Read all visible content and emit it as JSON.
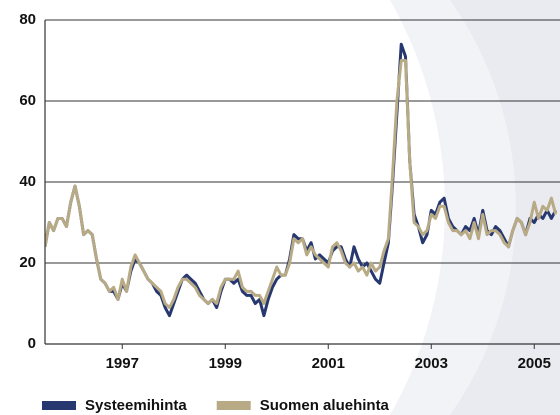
{
  "chart_data": {
    "type": "line",
    "x": [
      1996,
      1996.083,
      1996.167,
      1996.25,
      1996.333,
      1996.417,
      1996.5,
      1996.583,
      1996.667,
      1996.75,
      1996.833,
      1996.917,
      1997,
      1997.083,
      1997.167,
      1997.25,
      1997.333,
      1997.417,
      1997.5,
      1997.583,
      1997.667,
      1997.75,
      1997.833,
      1997.917,
      1998,
      1998.083,
      1998.167,
      1998.25,
      1998.333,
      1998.417,
      1998.5,
      1998.583,
      1998.667,
      1998.75,
      1998.833,
      1998.917,
      1999,
      1999.083,
      1999.167,
      1999.25,
      1999.333,
      1999.417,
      1999.5,
      1999.583,
      1999.667,
      1999.75,
      1999.833,
      1999.917,
      2000,
      2000.083,
      2000.167,
      2000.25,
      2000.333,
      2000.417,
      2000.5,
      2000.583,
      2000.667,
      2000.75,
      2000.833,
      2000.917,
      2001,
      2001.083,
      2001.167,
      2001.25,
      2001.333,
      2001.417,
      2001.5,
      2001.583,
      2001.667,
      2001.75,
      2001.833,
      2001.917,
      2002,
      2002.083,
      2002.167,
      2002.25,
      2002.333,
      2002.417,
      2002.5,
      2002.583,
      2002.667,
      2002.75,
      2002.833,
      2002.917,
      2003,
      2003.083,
      2003.167,
      2003.25,
      2003.333,
      2003.417,
      2003.5,
      2003.583,
      2003.667,
      2003.75,
      2003.833,
      2003.917,
      2004,
      2004.083,
      2004.167,
      2004.25,
      2004.333,
      2004.417,
      2004.5,
      2004.583,
      2004.667,
      2004.75,
      2004.833,
      2004.917,
      2005,
      2005.083,
      2005.167,
      2005.25,
      2005.333,
      2005.417,
      2005.5,
      2005.583,
      2005.667,
      2005.75,
      2005.833,
      2005.917
    ],
    "series": [
      {
        "name": "Systeemihinta",
        "color": "#26386f",
        "values": [
          24,
          30,
          28,
          31,
          31,
          29,
          35,
          39,
          34,
          27,
          28,
          27,
          21,
          16,
          15,
          13,
          13,
          11,
          15,
          13,
          18,
          21,
          20,
          18,
          16,
          15,
          13,
          12,
          9,
          7,
          10,
          13,
          16,
          17,
          16,
          15,
          13,
          11,
          10,
          11,
          9,
          13,
          16,
          16,
          15,
          16,
          13,
          12,
          12,
          10,
          11,
          7,
          11,
          14,
          16,
          17,
          17,
          21,
          27,
          26,
          26,
          23,
          25,
          21,
          22,
          21,
          20,
          23,
          24,
          24,
          21,
          19,
          24,
          21,
          19,
          20,
          18,
          16,
          15,
          20,
          25,
          40,
          57,
          74,
          71,
          45,
          32,
          29,
          25,
          27,
          33,
          32,
          35,
          36,
          31,
          29,
          28,
          27,
          29,
          28,
          31,
          27,
          33,
          28,
          27,
          29,
          28,
          26,
          24,
          28,
          31,
          30,
          27,
          31,
          30,
          32,
          31,
          33,
          31,
          33
        ]
      },
      {
        "name": "Suomen aluehinta",
        "color": "#b8aa84",
        "values": [
          24,
          30,
          28,
          31,
          31,
          29,
          35,
          39,
          34,
          27,
          28,
          27,
          21,
          16,
          15,
          13,
          14,
          11,
          16,
          13,
          19,
          22,
          20,
          18,
          16,
          15,
          14,
          13,
          10,
          9,
          11,
          14,
          16,
          16,
          15,
          14,
          12,
          11,
          10,
          11,
          10,
          14,
          16,
          16,
          16,
          18,
          14,
          13,
          13,
          12,
          12,
          10,
          13,
          16,
          19,
          17,
          17,
          20,
          26,
          25,
          26,
          22,
          24,
          22,
          21,
          20,
          19,
          24,
          25,
          23,
          20,
          19,
          20,
          18,
          19,
          17,
          20,
          18,
          19,
          23,
          26,
          42,
          60,
          70,
          70,
          45,
          30,
          29,
          27,
          28,
          32,
          31,
          34,
          34,
          30,
          28,
          28,
          27,
          28,
          26,
          30,
          26,
          32,
          27,
          28,
          28,
          27,
          25,
          24,
          28,
          31,
          30,
          27,
          30,
          35,
          31,
          34,
          33,
          36,
          32
        ]
      }
    ],
    "xlim": [
      1996,
      2006
    ],
    "xticks": [
      {
        "value": 1997.5,
        "label": "1997"
      },
      {
        "value": 1999.5,
        "label": "1999"
      },
      {
        "value": 2001.5,
        "label": "2001"
      },
      {
        "value": 2003.5,
        "label": "2003"
      },
      {
        "value": 2005.5,
        "label": "2005"
      }
    ],
    "ylim": [
      0,
      80
    ],
    "yticks": [
      0,
      20,
      40,
      60,
      80
    ],
    "grid": true,
    "legend": "bottom"
  }
}
